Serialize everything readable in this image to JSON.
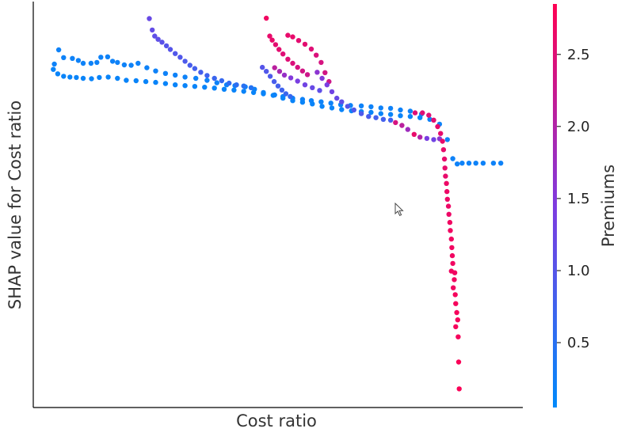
{
  "chart_data": {
    "type": "scatter",
    "title": "",
    "xlabel": "Cost ratio",
    "ylabel": "SHAP value for Cost ratio",
    "x_ticks": [],
    "y_ticks": [],
    "xlim": [
      0,
      100
    ],
    "ylim": [
      0,
      100
    ],
    "grid": false,
    "colorbar": {
      "label": "Premiums",
      "min": 0.05,
      "max": 2.85,
      "ticks": [
        "0.5",
        "1.0",
        "1.5",
        "2.0",
        "2.5"
      ],
      "tick_values": [
        0.5,
        1.0,
        1.5,
        2.0,
        2.5
      ],
      "colormap": [
        "#008afb",
        "#7e3be0",
        "#ff0052"
      ]
    },
    "series": [
      {
        "values": [
          {
            "x": 4.3,
            "y": 84.6,
            "c": 0.2
          },
          {
            "x": 5.2,
            "y": 88.1,
            "c": 0.2
          },
          {
            "x": 6.2,
            "y": 86.2,
            "c": 0.2
          },
          {
            "x": 8.0,
            "y": 86.0,
            "c": 0.2
          },
          {
            "x": 9.2,
            "y": 85.5,
            "c": 0.2
          },
          {
            "x": 10.2,
            "y": 84.8,
            "c": 0.2
          },
          {
            "x": 11.8,
            "y": 84.8,
            "c": 0.2
          },
          {
            "x": 13.0,
            "y": 85.0,
            "c": 0.2
          },
          {
            "x": 13.8,
            "y": 86.3,
            "c": 0.2
          },
          {
            "x": 15.2,
            "y": 86.4,
            "c": 0.2
          },
          {
            "x": 16.2,
            "y": 85.3,
            "c": 0.2
          },
          {
            "x": 17.2,
            "y": 85.0,
            "c": 0.2
          },
          {
            "x": 18.6,
            "y": 84.4,
            "c": 0.2
          },
          {
            "x": 20.0,
            "y": 84.3,
            "c": 0.2
          },
          {
            "x": 21.4,
            "y": 84.8,
            "c": 0.2
          },
          {
            "x": 23.2,
            "y": 83.7,
            "c": 0.2
          },
          {
            "x": 25.0,
            "y": 82.9,
            "c": 0.2
          },
          {
            "x": 27.0,
            "y": 82.3,
            "c": 0.2
          },
          {
            "x": 29.0,
            "y": 81.9,
            "c": 0.2
          },
          {
            "x": 31.0,
            "y": 81.4,
            "c": 0.2
          },
          {
            "x": 33.2,
            "y": 81.1,
            "c": 0.2
          },
          {
            "x": 35.5,
            "y": 80.6,
            "c": 0.2
          },
          {
            "x": 37.5,
            "y": 80.0,
            "c": 0.2
          },
          {
            "x": 39.5,
            "y": 79.5,
            "c": 0.2
          },
          {
            "x": 41.2,
            "y": 79.3,
            "c": 0.2
          },
          {
            "x": 43.3,
            "y": 79.0,
            "c": 0.2
          },
          {
            "x": 45.2,
            "y": 78.4,
            "c": 0.2
          },
          {
            "x": 47.0,
            "y": 77.6,
            "c": 0.2
          },
          {
            "x": 49.3,
            "y": 77.0,
            "c": 0.2
          },
          {
            "x": 51.0,
            "y": 76.6,
            "c": 0.2
          },
          {
            "x": 53.0,
            "y": 76.2,
            "c": 0.2
          },
          {
            "x": 55.0,
            "y": 75.9,
            "c": 0.2
          },
          {
            "x": 56.8,
            "y": 75.6,
            "c": 0.2
          },
          {
            "x": 58.8,
            "y": 75.3,
            "c": 0.2
          },
          {
            "x": 60.8,
            "y": 75.0,
            "c": 0.2
          },
          {
            "x": 62.8,
            "y": 74.6,
            "c": 0.2
          },
          {
            "x": 64.8,
            "y": 74.4,
            "c": 0.2
          },
          {
            "x": 67.0,
            "y": 74.3,
            "c": 0.2
          },
          {
            "x": 69.0,
            "y": 74.1,
            "c": 0.2
          },
          {
            "x": 71.0,
            "y": 73.8,
            "c": 0.2
          },
          {
            "x": 73.0,
            "y": 73.7,
            "c": 0.2
          },
          {
            "x": 75.0,
            "y": 73.3,
            "c": 0.2
          },
          {
            "x": 77.0,
            "y": 73.0,
            "c": 0.2
          },
          {
            "x": 79.3,
            "y": 72.3,
            "c": 0.2
          },
          {
            "x": 81.0,
            "y": 71.0,
            "c": 0.2
          },
          {
            "x": 83.0,
            "y": 69.8,
            "c": 0.2
          },
          {
            "x": 84.6,
            "y": 66.0,
            "c": 0.2
          },
          {
            "x": 85.7,
            "y": 61.3,
            "c": 0.2
          },
          {
            "x": 86.6,
            "y": 60.0,
            "c": 0.2
          },
          {
            "x": 87.6,
            "y": 60.2,
            "c": 0.2
          },
          {
            "x": 89.0,
            "y": 60.2,
            "c": 0.2
          },
          {
            "x": 90.4,
            "y": 60.2,
            "c": 0.2
          },
          {
            "x": 91.9,
            "y": 60.2,
            "c": 0.2
          },
          {
            "x": 94.0,
            "y": 60.2,
            "c": 0.2
          },
          {
            "x": 95.5,
            "y": 60.2,
            "c": 0.2
          },
          {
            "x": 4.1,
            "y": 83.3,
            "c": 0.15
          },
          {
            "x": 5.0,
            "y": 82.2,
            "c": 0.15
          },
          {
            "x": 6.2,
            "y": 81.6,
            "c": 0.15
          },
          {
            "x": 7.5,
            "y": 81.4,
            "c": 0.15
          },
          {
            "x": 8.8,
            "y": 81.3,
            "c": 0.15
          },
          {
            "x": 10.2,
            "y": 81.1,
            "c": 0.15
          },
          {
            "x": 11.9,
            "y": 81.0,
            "c": 0.15
          },
          {
            "x": 13.5,
            "y": 81.3,
            "c": 0.15
          },
          {
            "x": 15.3,
            "y": 81.4,
            "c": 0.15
          },
          {
            "x": 17.2,
            "y": 81.1,
            "c": 0.15
          },
          {
            "x": 19.0,
            "y": 80.6,
            "c": 0.15
          },
          {
            "x": 21.0,
            "y": 80.5,
            "c": 0.15
          },
          {
            "x": 23.0,
            "y": 80.3,
            "c": 0.15
          },
          {
            "x": 25.0,
            "y": 80.1,
            "c": 0.15
          },
          {
            "x": 27.0,
            "y": 79.8,
            "c": 0.15
          },
          {
            "x": 29.0,
            "y": 79.5,
            "c": 0.15
          },
          {
            "x": 31.0,
            "y": 79.3,
            "c": 0.15
          },
          {
            "x": 33.0,
            "y": 79.1,
            "c": 0.15
          },
          {
            "x": 35.0,
            "y": 78.9,
            "c": 0.15
          },
          {
            "x": 37.0,
            "y": 78.7,
            "c": 0.15
          },
          {
            "x": 39.0,
            "y": 78.4,
            "c": 0.15
          },
          {
            "x": 41.0,
            "y": 78.2,
            "c": 0.15
          },
          {
            "x": 43.0,
            "y": 77.9,
            "c": 0.15
          },
          {
            "x": 45.0,
            "y": 77.6,
            "c": 0.15
          },
          {
            "x": 47.0,
            "y": 77.3,
            "c": 0.15
          },
          {
            "x": 49.0,
            "y": 76.9,
            "c": 0.15
          },
          {
            "x": 51.0,
            "y": 76.2,
            "c": 0.15
          },
          {
            "x": 53.0,
            "y": 75.6,
            "c": 0.15
          },
          {
            "x": 55.0,
            "y": 75.2,
            "c": 0.15
          },
          {
            "x": 57.0,
            "y": 74.8,
            "c": 0.15
          },
          {
            "x": 59.0,
            "y": 74.2,
            "c": 0.15
          },
          {
            "x": 61.0,
            "y": 73.8,
            "c": 0.15
          },
          {
            "x": 63.0,
            "y": 73.4,
            "c": 0.15
          },
          {
            "x": 65.0,
            "y": 73.1,
            "c": 0.15
          },
          {
            "x": 67.0,
            "y": 72.9,
            "c": 0.15
          },
          {
            "x": 69.0,
            "y": 72.7,
            "c": 0.15
          },
          {
            "x": 71.0,
            "y": 72.4,
            "c": 0.15
          },
          {
            "x": 73.0,
            "y": 72.2,
            "c": 0.15
          },
          {
            "x": 75.0,
            "y": 71.9,
            "c": 0.15
          },
          {
            "x": 77.0,
            "y": 71.7,
            "c": 0.15
          },
          {
            "x": 79.0,
            "y": 71.4,
            "c": 0.15
          },
          {
            "x": 23.7,
            "y": 95.8,
            "c": 1.2
          },
          {
            "x": 24.3,
            "y": 93.0,
            "c": 1.15
          },
          {
            "x": 24.8,
            "y": 91.5,
            "c": 1.1
          },
          {
            "x": 25.5,
            "y": 90.7,
            "c": 1.1
          },
          {
            "x": 26.3,
            "y": 90.0,
            "c": 1.05
          },
          {
            "x": 27.2,
            "y": 89.1,
            "c": 1.0
          },
          {
            "x": 28.0,
            "y": 88.2,
            "c": 1.0
          },
          {
            "x": 29.0,
            "y": 87.2,
            "c": 0.95
          },
          {
            "x": 30.0,
            "y": 86.3,
            "c": 0.95
          },
          {
            "x": 31.0,
            "y": 85.3,
            "c": 0.9
          },
          {
            "x": 32.0,
            "y": 84.3,
            "c": 0.85
          },
          {
            "x": 33.0,
            "y": 83.5,
            "c": 0.8
          },
          {
            "x": 34.2,
            "y": 82.6,
            "c": 0.8
          },
          {
            "x": 35.5,
            "y": 81.8,
            "c": 0.75
          },
          {
            "x": 37.0,
            "y": 81.1,
            "c": 0.7
          },
          {
            "x": 38.5,
            "y": 80.5,
            "c": 0.65
          },
          {
            "x": 40.0,
            "y": 79.9,
            "c": 0.6
          },
          {
            "x": 41.5,
            "y": 79.5,
            "c": 0.55
          },
          {
            "x": 43.0,
            "y": 79.2,
            "c": 0.5
          },
          {
            "x": 44.5,
            "y": 78.8,
            "c": 0.45
          },
          {
            "x": 47.6,
            "y": 95.9,
            "c": 2.7
          },
          {
            "x": 48.3,
            "y": 91.5,
            "c": 2.6
          },
          {
            "x": 48.8,
            "y": 90.5,
            "c": 2.6
          },
          {
            "x": 49.5,
            "y": 89.4,
            "c": 2.55
          },
          {
            "x": 50.2,
            "y": 88.2,
            "c": 2.55
          },
          {
            "x": 51.0,
            "y": 87.1,
            "c": 2.5
          },
          {
            "x": 52.0,
            "y": 85.8,
            "c": 2.5
          },
          {
            "x": 53.0,
            "y": 84.8,
            "c": 2.45
          },
          {
            "x": 54.0,
            "y": 83.8,
            "c": 2.4
          },
          {
            "x": 55.0,
            "y": 82.9,
            "c": 2.35
          },
          {
            "x": 56.0,
            "y": 82.0,
            "c": 2.3
          },
          {
            "x": 52.0,
            "y": 91.7,
            "c": 2.6
          },
          {
            "x": 53.0,
            "y": 91.3,
            "c": 2.6
          },
          {
            "x": 54.2,
            "y": 90.4,
            "c": 2.55
          },
          {
            "x": 55.5,
            "y": 89.5,
            "c": 2.55
          },
          {
            "x": 56.8,
            "y": 88.3,
            "c": 2.5
          },
          {
            "x": 57.8,
            "y": 86.8,
            "c": 2.45
          },
          {
            "x": 58.8,
            "y": 85.0,
            "c": 2.4
          },
          {
            "x": 59.6,
            "y": 82.5,
            "c": 2.35
          },
          {
            "x": 60.4,
            "y": 80.3,
            "c": 2.3
          },
          {
            "x": 49.3,
            "y": 83.7,
            "c": 2.1
          },
          {
            "x": 50.3,
            "y": 82.8,
            "c": 1.9
          },
          {
            "x": 51.3,
            "y": 81.9,
            "c": 1.7
          },
          {
            "x": 52.6,
            "y": 81.2,
            "c": 1.5
          },
          {
            "x": 54.0,
            "y": 80.4,
            "c": 1.4
          },
          {
            "x": 55.5,
            "y": 79.5,
            "c": 1.3
          },
          {
            "x": 57.0,
            "y": 78.8,
            "c": 1.2
          },
          {
            "x": 58.5,
            "y": 78.1,
            "c": 1.1
          },
          {
            "x": 46.8,
            "y": 83.8,
            "c": 1.0
          },
          {
            "x": 47.6,
            "y": 82.8,
            "c": 0.95
          },
          {
            "x": 48.4,
            "y": 81.6,
            "c": 0.9
          },
          {
            "x": 49.2,
            "y": 80.3,
            "c": 0.85
          },
          {
            "x": 50.0,
            "y": 79.2,
            "c": 0.8
          },
          {
            "x": 50.8,
            "y": 78.2,
            "c": 0.75
          },
          {
            "x": 51.6,
            "y": 77.3,
            "c": 0.7
          },
          {
            "x": 52.5,
            "y": 76.6,
            "c": 0.65
          },
          {
            "x": 58.0,
            "y": 82.6,
            "c": 1.6
          },
          {
            "x": 59.0,
            "y": 81.1,
            "c": 1.5
          },
          {
            "x": 60.0,
            "y": 79.5,
            "c": 1.4
          },
          {
            "x": 61.0,
            "y": 77.8,
            "c": 1.3
          },
          {
            "x": 62.0,
            "y": 76.2,
            "c": 1.2
          },
          {
            "x": 63.0,
            "y": 75.3,
            "c": 1.1
          },
          {
            "x": 64.2,
            "y": 74.2,
            "c": 1.0
          },
          {
            "x": 65.5,
            "y": 73.3,
            "c": 0.95
          },
          {
            "x": 67.0,
            "y": 72.4,
            "c": 0.9
          },
          {
            "x": 68.5,
            "y": 71.7,
            "c": 0.85
          },
          {
            "x": 70.0,
            "y": 71.4,
            "c": 0.8
          },
          {
            "x": 71.5,
            "y": 71.0,
            "c": 0.8
          },
          {
            "x": 73.0,
            "y": 70.8,
            "c": 0.8
          },
          {
            "x": 74.0,
            "y": 70.2,
            "c": 2.4
          },
          {
            "x": 75.3,
            "y": 69.5,
            "c": 2.1
          },
          {
            "x": 76.5,
            "y": 68.5,
            "c": 1.8
          },
          {
            "x": 77.8,
            "y": 67.3,
            "c": 2.6
          },
          {
            "x": 79.0,
            "y": 66.6,
            "c": 2.0
          },
          {
            "x": 80.4,
            "y": 66.3,
            "c": 1.4
          },
          {
            "x": 81.8,
            "y": 66.0,
            "c": 1.3
          },
          {
            "x": 83.0,
            "y": 66.2,
            "c": 1.6
          },
          {
            "x": 78.0,
            "y": 72.6,
            "c": 2.5
          },
          {
            "x": 79.5,
            "y": 72.6,
            "c": 2.5
          },
          {
            "x": 80.8,
            "y": 72.0,
            "c": 2.5
          },
          {
            "x": 81.8,
            "y": 70.8,
            "c": 2.55
          },
          {
            "x": 82.6,
            "y": 69.2,
            "c": 2.6
          },
          {
            "x": 83.2,
            "y": 67.5,
            "c": 2.6
          },
          {
            "x": 83.6,
            "y": 65.6,
            "c": 2.6
          },
          {
            "x": 83.8,
            "y": 63.5,
            "c": 2.6
          },
          {
            "x": 84.0,
            "y": 61.2,
            "c": 2.6
          },
          {
            "x": 84.1,
            "y": 59.0,
            "c": 2.6
          },
          {
            "x": 84.2,
            "y": 57.0,
            "c": 2.6
          },
          {
            "x": 84.4,
            "y": 55.2,
            "c": 2.65
          },
          {
            "x": 84.5,
            "y": 53.2,
            "c": 2.65
          },
          {
            "x": 84.6,
            "y": 51.3,
            "c": 2.65
          },
          {
            "x": 84.8,
            "y": 49.6,
            "c": 2.65
          },
          {
            "x": 84.9,
            "y": 47.6,
            "c": 2.65
          },
          {
            "x": 85.1,
            "y": 45.6,
            "c": 2.7
          },
          {
            "x": 85.2,
            "y": 43.6,
            "c": 2.7
          },
          {
            "x": 85.4,
            "y": 41.5,
            "c": 2.7
          },
          {
            "x": 85.5,
            "y": 39.4,
            "c": 2.7
          },
          {
            "x": 85.6,
            "y": 37.4,
            "c": 2.7
          },
          {
            "x": 85.7,
            "y": 35.5,
            "c": 2.7
          },
          {
            "x": 85.4,
            "y": 33.6,
            "c": 2.7
          },
          {
            "x": 86.1,
            "y": 33.2,
            "c": 2.7
          },
          {
            "x": 86.0,
            "y": 31.5,
            "c": 2.7
          },
          {
            "x": 85.8,
            "y": 29.5,
            "c": 2.7
          },
          {
            "x": 86.2,
            "y": 27.8,
            "c": 2.75
          },
          {
            "x": 86.3,
            "y": 25.6,
            "c": 2.75
          },
          {
            "x": 86.5,
            "y": 23.4,
            "c": 2.75
          },
          {
            "x": 86.7,
            "y": 21.6,
            "c": 2.75
          },
          {
            "x": 86.3,
            "y": 19.9,
            "c": 2.75
          },
          {
            "x": 86.8,
            "y": 17.4,
            "c": 2.75
          },
          {
            "x": 86.9,
            "y": 11.2,
            "c": 2.8
          },
          {
            "x": 87.0,
            "y": 4.6,
            "c": 2.8
          }
        ]
      }
    ]
  },
  "cursor": {
    "icon": "mouse-pointer-icon"
  }
}
